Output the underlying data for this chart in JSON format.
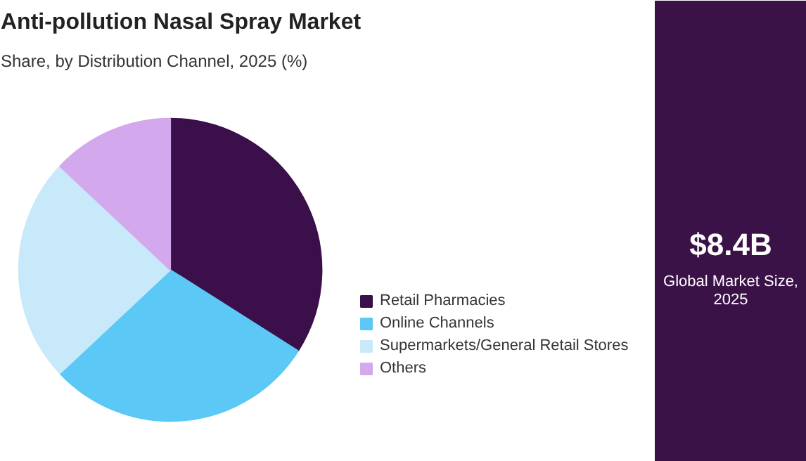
{
  "chart_data": [
    {
      "type": "pie",
      "title": "Anti-pollution Nasal Spray Market",
      "subtitle": "Share, by Distribution Channel, 2025 (%)",
      "categories": [
        "Retail Pharmacies",
        "Online Channels",
        "Supermarkets/General Retail Stores",
        "Others"
      ],
      "values": [
        34,
        29,
        24,
        13
      ],
      "colors": [
        "#3a0f4a",
        "#5bc8f5",
        "#c8e9f9",
        "#d4a8ec"
      ],
      "legend": "right"
    },
    {
      "type": "other",
      "title": "$8.4B",
      "annotations": [
        "Global Market Size, 2025"
      ]
    }
  ]
}
